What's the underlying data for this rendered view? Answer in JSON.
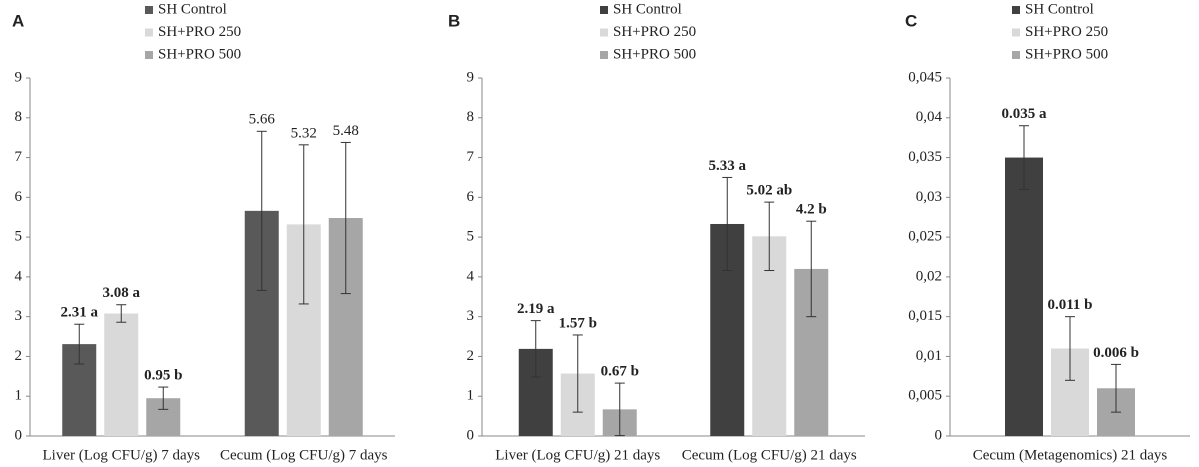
{
  "chart_data": [
    {
      "type": "bar",
      "label": "A",
      "categories": [
        "Liver (Log CFU/g) 7 days",
        "Cecum (Log CFU/g) 7 days"
      ],
      "bold_categories": [
        true,
        false
      ],
      "series": [
        {
          "name": "SH Control",
          "color": "#595959",
          "values": [
            2.31,
            5.66
          ],
          "errors": [
            0.5,
            2.0
          ],
          "value_labels": [
            "2.31 a",
            "5.66"
          ]
        },
        {
          "name": "SH+PRO 250",
          "color": "#d9d9d9",
          "values": [
            3.08,
            5.32
          ],
          "errors": [
            0.22,
            2.0
          ],
          "value_labels": [
            "3.08 a",
            "5.32"
          ]
        },
        {
          "name": "SH+PRO 500",
          "color": "#a6a6a6",
          "values": [
            0.95,
            5.48
          ],
          "errors": [
            0.28,
            1.9
          ],
          "value_labels": [
            "0.95 b",
            "5.48"
          ]
        }
      ],
      "ylim": [
        0,
        9
      ],
      "yticks": [
        0,
        1,
        2,
        3,
        4,
        5,
        6,
        7,
        8,
        9
      ]
    },
    {
      "type": "bar",
      "label": "B",
      "categories": [
        "Liver (Log CFU/g) 21 days",
        "Cecum (Log CFU/g) 21 days"
      ],
      "bold_categories": [
        true,
        true
      ],
      "series": [
        {
          "name": "SH Control",
          "color": "#404040",
          "values": [
            2.19,
            5.33
          ],
          "errors": [
            0.71,
            1.17
          ],
          "value_labels": [
            "2.19 a",
            "5.33 a"
          ]
        },
        {
          "name": "SH+PRO 250",
          "color": "#d9d9d9",
          "values": [
            1.57,
            5.02
          ],
          "errors": [
            0.97,
            0.86
          ],
          "value_labels": [
            "1.57 b",
            "5.02 ab"
          ]
        },
        {
          "name": "SH+PRO 500",
          "color": "#a6a6a6",
          "values": [
            0.67,
            4.2
          ],
          "errors": [
            0.66,
            1.2
          ],
          "value_labels": [
            "0.67 b",
            "4.2 b"
          ]
        }
      ],
      "ylim": [
        0,
        9
      ],
      "yticks": [
        0,
        1,
        2,
        3,
        4,
        5,
        6,
        7,
        8,
        9
      ]
    },
    {
      "type": "bar",
      "label": "C",
      "categories": [
        "Cecum (Metagenomics) 21 days"
      ],
      "bold_categories": [
        true
      ],
      "series": [
        {
          "name": "SH Control",
          "color": "#404040",
          "values": [
            0.035
          ],
          "errors": [
            0.004
          ],
          "value_labels": [
            "0.035 a"
          ]
        },
        {
          "name": "SH+PRO 250",
          "color": "#d9d9d9",
          "values": [
            0.011
          ],
          "errors": [
            0.004
          ],
          "value_labels": [
            "0.011 b"
          ]
        },
        {
          "name": "SH+PRO 500",
          "color": "#a6a6a6",
          "values": [
            0.006
          ],
          "errors": [
            0.003
          ],
          "value_labels": [
            "0.006 b"
          ]
        }
      ],
      "ylim": [
        0,
        0.045
      ],
      "yticks": [
        0,
        {
          "value": 0.005,
          "label": "0,005"
        },
        {
          "value": 0.01,
          "label": "0,01"
        },
        {
          "value": 0.015,
          "label": "0,015"
        },
        {
          "value": 0.02,
          "label": "0,02"
        },
        {
          "value": 0.025,
          "label": "0,025"
        },
        {
          "value": 0.03,
          "label": "0,03"
        },
        {
          "value": 0.035,
          "label": "0,035"
        },
        {
          "value": 0.04,
          "label": "0,04"
        },
        {
          "value": 0.045,
          "label": "0,045"
        }
      ]
    }
  ]
}
